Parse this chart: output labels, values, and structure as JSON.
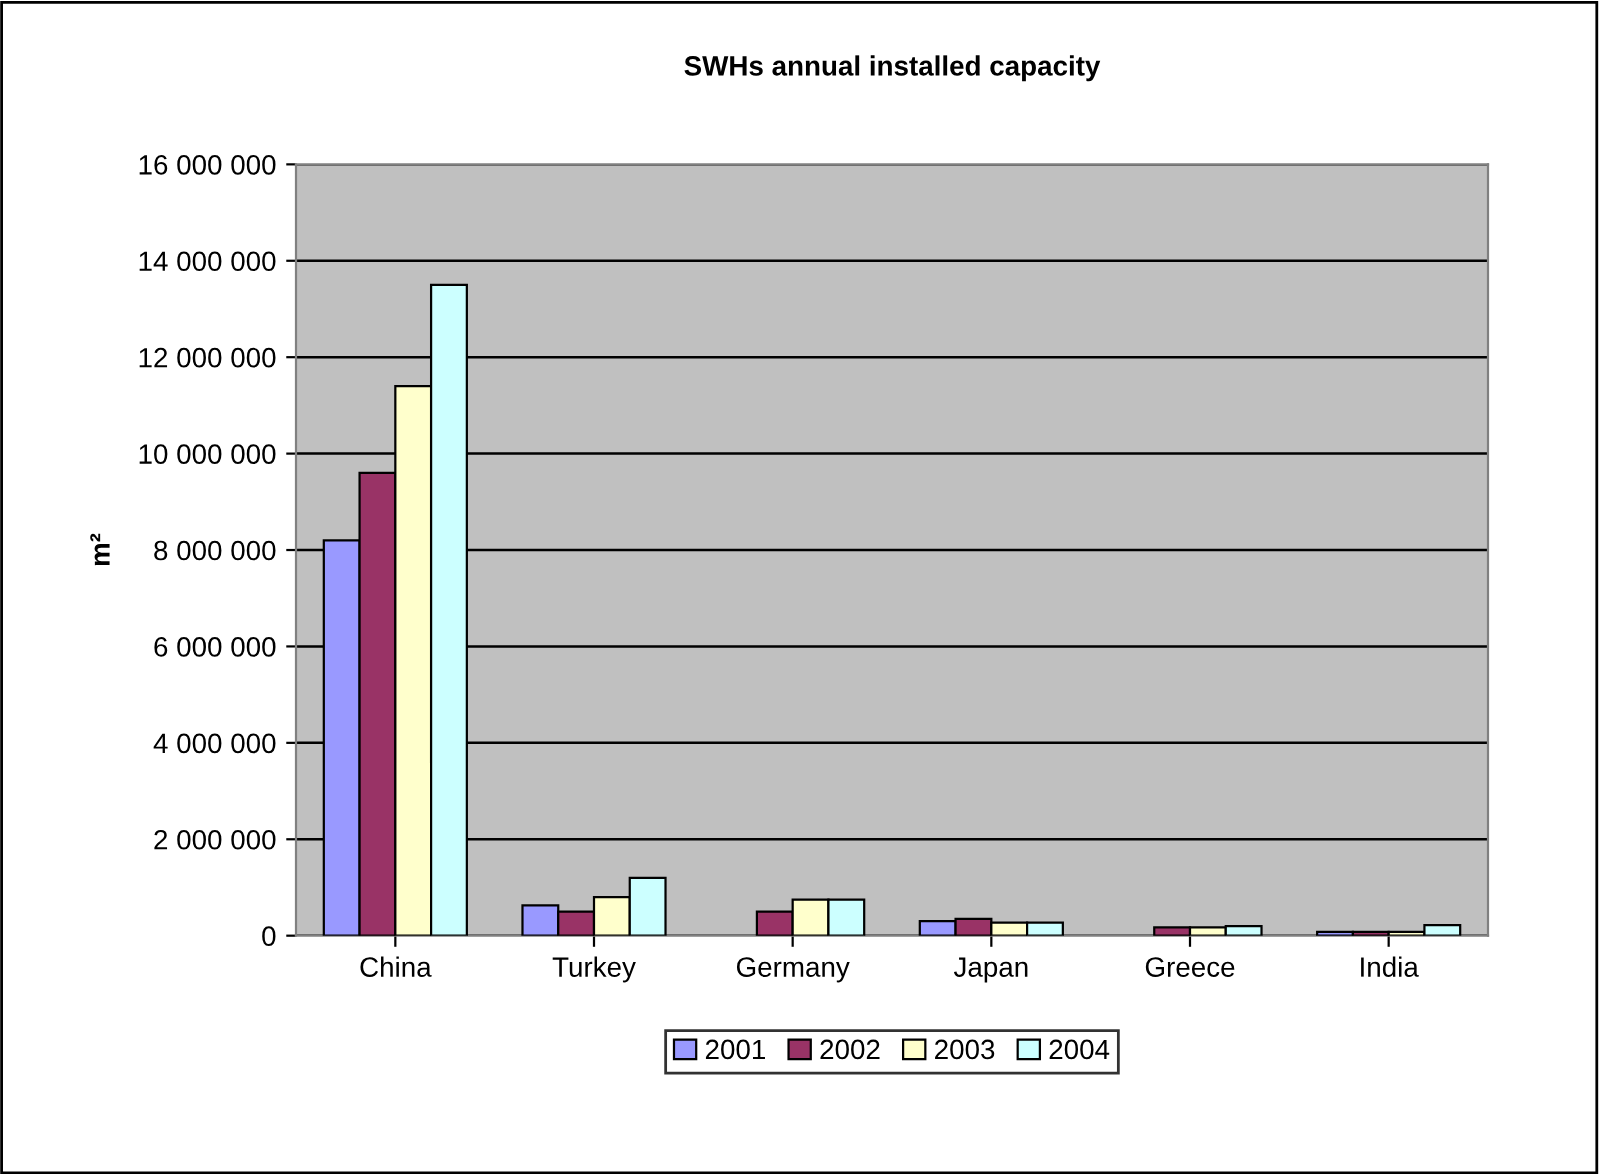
{
  "chart_data": {
    "type": "bar",
    "title": "SWHs annual installed capacity",
    "ylabel": "m²",
    "categories": [
      "China",
      "Turkey",
      "Germany",
      "Japan",
      "Greece",
      "India"
    ],
    "series": [
      {
        "name": "2001",
        "color": "#9999ff",
        "values": [
          8200000,
          630000,
          null,
          300000,
          null,
          80000
        ]
      },
      {
        "name": "2002",
        "color": "#993366",
        "values": [
          9600000,
          500000,
          500000,
          350000,
          170000,
          80000
        ]
      },
      {
        "name": "2003",
        "color": "#ffffcc",
        "values": [
          11400000,
          800000,
          750000,
          270000,
          170000,
          80000
        ]
      },
      {
        "name": "2004",
        "color": "#ccffff",
        "values": [
          13500000,
          1200000,
          750000,
          270000,
          200000,
          220000
        ]
      }
    ],
    "ylim": [
      0,
      16000000
    ],
    "yticks": [
      {
        "value": 0,
        "label": "0"
      },
      {
        "value": 2000000,
        "label": "2 000 000"
      },
      {
        "value": 4000000,
        "label": "4 000 000"
      },
      {
        "value": 6000000,
        "label": "6 000 000"
      },
      {
        "value": 8000000,
        "label": "8 000 000"
      },
      {
        "value": 10000000,
        "label": "10 000 000"
      },
      {
        "value": 12000000,
        "label": "12 000 000"
      },
      {
        "value": 14000000,
        "label": "14 000 000"
      },
      {
        "value": 16000000,
        "label": "16 000 000"
      }
    ],
    "grid": "y",
    "legend": "bottom"
  }
}
